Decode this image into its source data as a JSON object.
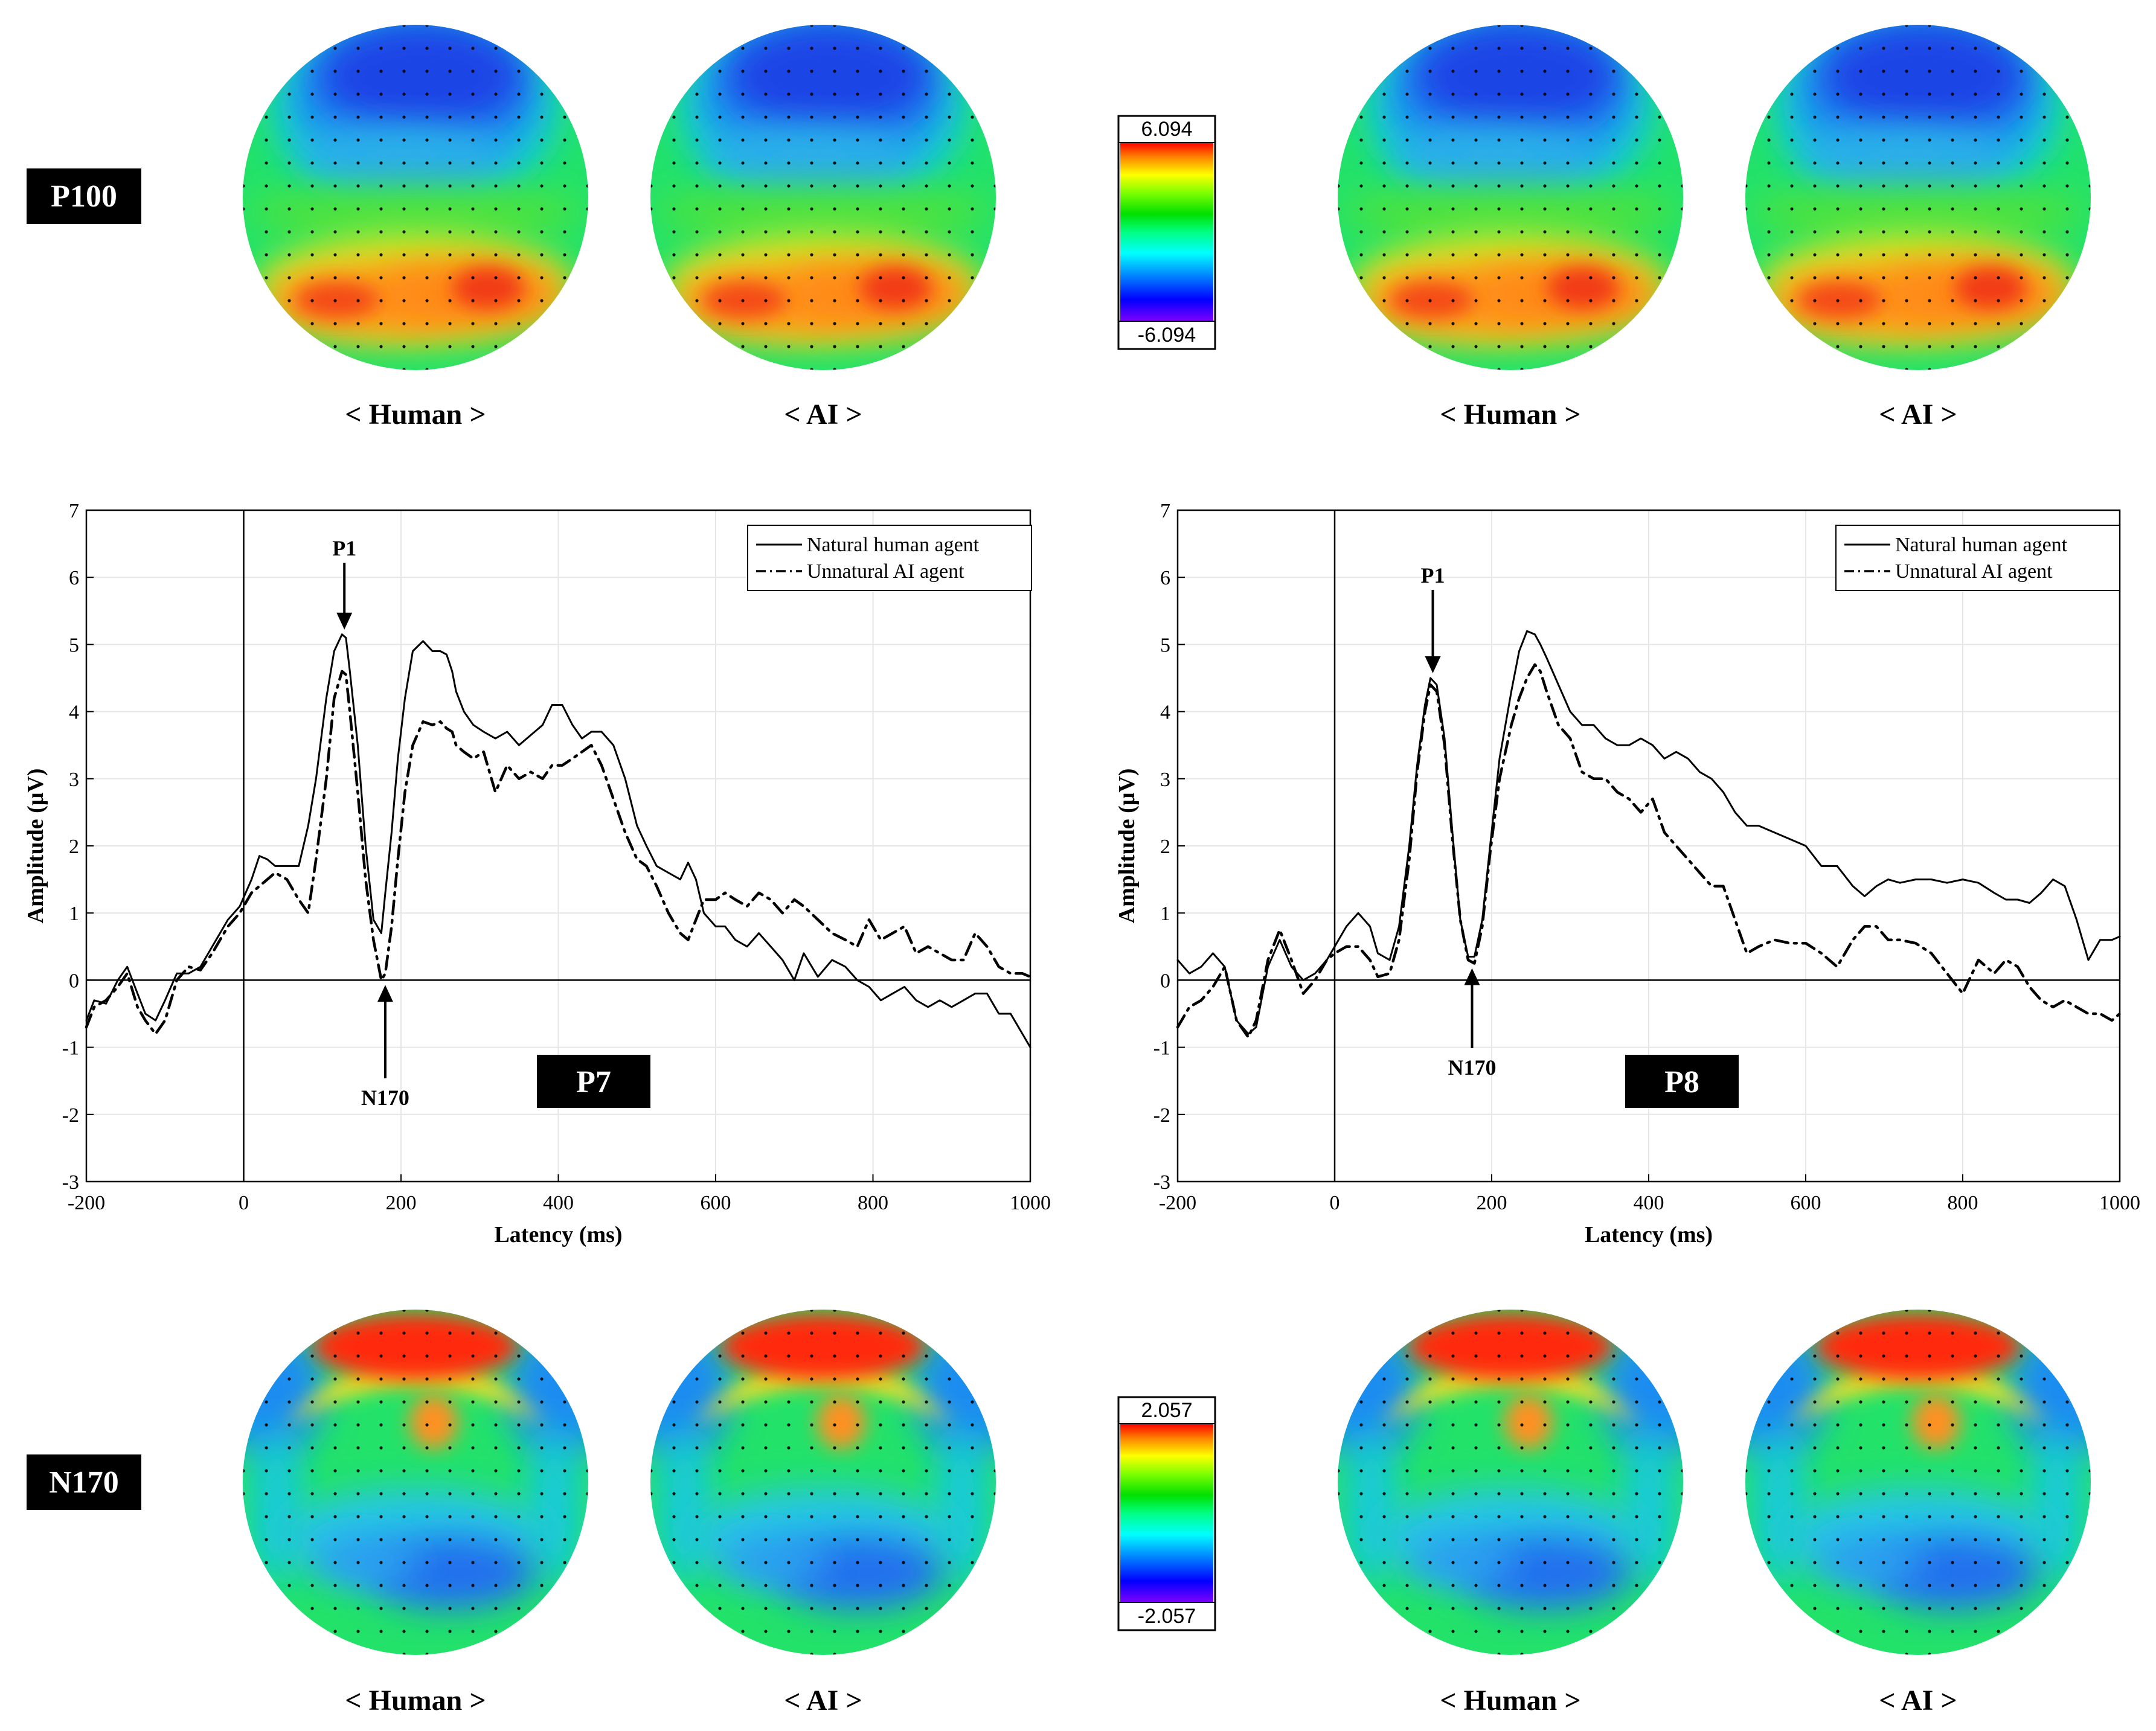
{
  "tags": {
    "top": "P100",
    "bottom": "N170"
  },
  "captions": {
    "human": "< Human >",
    "ai": "< AI >"
  },
  "colorbars": {
    "top": {
      "max": "6.094",
      "min": "-6.094"
    },
    "bottom": {
      "max": "2.057",
      "min": "-2.057"
    }
  },
  "colors": {
    "jet": [
      "#7f00ff",
      "#0000ff",
      "#0080ff",
      "#00ffff",
      "#00ff80",
      "#00ff00",
      "#80ff00",
      "#ffff00",
      "#ff8000",
      "#ff0000"
    ]
  },
  "chart_data": [
    {
      "type": "line",
      "title": "",
      "channel": "P7",
      "xlabel": "Latency (ms)",
      "ylabel": "Amplitude (μV)",
      "xlim": [
        -200,
        1000
      ],
      "ylim": [
        -3,
        7
      ],
      "xticks": [
        "-200",
        "0",
        "200",
        "400",
        "600",
        "800",
        "1000"
      ],
      "yticks": [
        "-3",
        "-2",
        "-1",
        "0",
        "1",
        "2",
        "3",
        "4",
        "5",
        "6",
        "7"
      ],
      "grid": true,
      "legend_position": "top-right",
      "annotations": {
        "peak": "P1",
        "trough": "N170"
      },
      "series": [
        {
          "name": "Natural human agent",
          "style": "solid",
          "x": [
            -200,
            -190,
            -175,
            -160,
            -148,
            -135,
            -125,
            -112,
            -100,
            -85,
            -70,
            -55,
            -40,
            -20,
            -5,
            10,
            20,
            30,
            40,
            55,
            70,
            82,
            92,
            105,
            115,
            125,
            130,
            135,
            145,
            155,
            165,
            175,
            180,
            188,
            196,
            205,
            215,
            228,
            240,
            250,
            258,
            265,
            270,
            280,
            292,
            305,
            320,
            335,
            350,
            365,
            380,
            392,
            405,
            418,
            430,
            442,
            455,
            470,
            485,
            500,
            512,
            525,
            540,
            555,
            565,
            575,
            585,
            600,
            612,
            625,
            640,
            655,
            670,
            685,
            700,
            712,
            730,
            748,
            765,
            780,
            795,
            810,
            825,
            840,
            855,
            870,
            885,
            900,
            915,
            930,
            945,
            960,
            975,
            990,
            1000
          ],
          "values": [
            -0.6,
            -0.3,
            -0.35,
            0.0,
            0.2,
            -0.2,
            -0.5,
            -0.6,
            -0.3,
            0.1,
            0.1,
            0.2,
            0.5,
            0.9,
            1.1,
            1.5,
            1.85,
            1.8,
            1.7,
            1.7,
            1.7,
            2.3,
            3.0,
            4.2,
            4.9,
            5.15,
            5.1,
            4.6,
            3.5,
            2.0,
            0.9,
            0.7,
            1.3,
            2.2,
            3.3,
            4.2,
            4.9,
            5.05,
            4.9,
            4.9,
            4.85,
            4.6,
            4.3,
            4.0,
            3.8,
            3.7,
            3.6,
            3.7,
            3.5,
            3.65,
            3.8,
            4.1,
            4.1,
            3.8,
            3.6,
            3.7,
            3.7,
            3.5,
            3.0,
            2.3,
            2.0,
            1.7,
            1.6,
            1.5,
            1.75,
            1.5,
            1.0,
            0.8,
            0.8,
            0.6,
            0.5,
            0.7,
            0.5,
            0.3,
            0.0,
            0.4,
            0.05,
            0.3,
            0.2,
            0.0,
            -0.1,
            -0.3,
            -0.2,
            -0.1,
            -0.3,
            -0.4,
            -0.3,
            -0.4,
            -0.3,
            -0.2,
            -0.2,
            -0.5,
            -0.5,
            -0.8,
            -1.0
          ]
        },
        {
          "name": "Unnatural AI agent",
          "style": "dashdot",
          "x": [
            -200,
            -190,
            -175,
            -160,
            -148,
            -135,
            -125,
            -112,
            -100,
            -85,
            -70,
            -55,
            -40,
            -20,
            -5,
            10,
            20,
            30,
            40,
            55,
            70,
            82,
            92,
            105,
            115,
            125,
            130,
            135,
            145,
            155,
            165,
            175,
            180,
            188,
            196,
            205,
            215,
            228,
            240,
            250,
            258,
            265,
            270,
            280,
            292,
            305,
            320,
            335,
            350,
            365,
            380,
            392,
            405,
            418,
            430,
            442,
            455,
            470,
            485,
            500,
            512,
            525,
            540,
            555,
            565,
            575,
            585,
            600,
            612,
            625,
            640,
            655,
            670,
            685,
            700,
            712,
            730,
            748,
            765,
            780,
            795,
            810,
            825,
            840,
            855,
            870,
            885,
            900,
            915,
            930,
            945,
            960,
            975,
            990,
            1000
          ],
          "values": [
            -0.7,
            -0.4,
            -0.3,
            -0.1,
            0.1,
            -0.4,
            -0.6,
            -0.8,
            -0.6,
            0.0,
            0.2,
            0.15,
            0.4,
            0.8,
            1.0,
            1.3,
            1.4,
            1.5,
            1.6,
            1.5,
            1.2,
            1.0,
            1.8,
            3.0,
            4.2,
            4.6,
            4.55,
            4.0,
            2.8,
            1.5,
            0.6,
            0.0,
            0.1,
            0.8,
            1.8,
            2.8,
            3.5,
            3.85,
            3.8,
            3.85,
            3.75,
            3.7,
            3.5,
            3.4,
            3.3,
            3.4,
            2.8,
            3.2,
            3.0,
            3.1,
            3.0,
            3.2,
            3.2,
            3.3,
            3.4,
            3.5,
            3.2,
            2.7,
            2.2,
            1.8,
            1.7,
            1.4,
            1.0,
            0.7,
            0.6,
            0.9,
            1.2,
            1.2,
            1.3,
            1.2,
            1.1,
            1.3,
            1.2,
            1.0,
            1.2,
            1.1,
            0.9,
            0.7,
            0.6,
            0.5,
            0.9,
            0.6,
            0.7,
            0.8,
            0.4,
            0.5,
            0.4,
            0.3,
            0.3,
            0.7,
            0.5,
            0.2,
            0.1,
            0.1,
            0.05
          ]
        }
      ]
    },
    {
      "type": "line",
      "title": "",
      "channel": "P8",
      "xlabel": "Latency (ms)",
      "ylabel": "Amplitude (μV)",
      "xlim": [
        -200,
        1000
      ],
      "ylim": [
        -3,
        7
      ],
      "xticks": [
        "-200",
        "0",
        "200",
        "400",
        "600",
        "800",
        "1000"
      ],
      "yticks": [
        "-3",
        "-2",
        "-1",
        "0",
        "1",
        "2",
        "3",
        "4",
        "5",
        "6",
        "7"
      ],
      "grid": true,
      "legend_position": "top-right",
      "annotations": {
        "peak": "P1",
        "trough": "N170"
      },
      "series": [
        {
          "name": "Natural human agent",
          "style": "solid",
          "x": [
            -200,
            -185,
            -170,
            -155,
            -140,
            -125,
            -110,
            -100,
            -85,
            -70,
            -55,
            -40,
            -25,
            -10,
            0,
            15,
            30,
            45,
            55,
            70,
            82,
            95,
            105,
            115,
            122,
            130,
            140,
            150,
            160,
            170,
            178,
            188,
            198,
            210,
            225,
            235,
            245,
            255,
            262,
            270,
            285,
            300,
            315,
            330,
            345,
            360,
            375,
            390,
            405,
            420,
            435,
            450,
            465,
            480,
            495,
            510,
            525,
            540,
            560,
            580,
            600,
            620,
            640,
            660,
            675,
            690,
            705,
            720,
            740,
            760,
            780,
            800,
            820,
            840,
            855,
            870,
            885,
            900,
            915,
            930,
            945,
            960,
            975,
            990,
            1000
          ],
          "values": [
            0.3,
            0.1,
            0.2,
            0.4,
            0.2,
            -0.6,
            -0.8,
            -0.7,
            0.2,
            0.6,
            0.2,
            0.0,
            0.1,
            0.3,
            0.5,
            0.8,
            1.0,
            0.8,
            0.4,
            0.3,
            0.8,
            2.0,
            3.2,
            4.1,
            4.5,
            4.4,
            3.6,
            2.2,
            0.9,
            0.35,
            0.35,
            0.9,
            2.0,
            3.3,
            4.3,
            4.9,
            5.2,
            5.15,
            5.0,
            4.8,
            4.4,
            4.0,
            3.8,
            3.8,
            3.6,
            3.5,
            3.5,
            3.6,
            3.5,
            3.3,
            3.4,
            3.3,
            3.1,
            3.0,
            2.8,
            2.5,
            2.3,
            2.3,
            2.2,
            2.1,
            2.0,
            1.7,
            1.7,
            1.4,
            1.25,
            1.4,
            1.5,
            1.45,
            1.5,
            1.5,
            1.45,
            1.5,
            1.45,
            1.3,
            1.2,
            1.2,
            1.15,
            1.3,
            1.5,
            1.4,
            0.9,
            0.3,
            0.6,
            0.6,
            0.65
          ]
        },
        {
          "name": "Unnatural AI agent",
          "style": "dashdot",
          "x": [
            -200,
            -185,
            -170,
            -155,
            -140,
            -125,
            -110,
            -100,
            -85,
            -70,
            -55,
            -40,
            -25,
            -10,
            0,
            15,
            30,
            45,
            55,
            70,
            82,
            95,
            105,
            115,
            122,
            130,
            140,
            150,
            160,
            170,
            178,
            188,
            198,
            210,
            225,
            235,
            245,
            255,
            262,
            270,
            285,
            300,
            315,
            330,
            345,
            360,
            375,
            390,
            405,
            420,
            435,
            450,
            465,
            480,
            495,
            510,
            525,
            540,
            560,
            580,
            600,
            620,
            640,
            660,
            675,
            690,
            705,
            720,
            740,
            760,
            780,
            800,
            820,
            840,
            855,
            870,
            885,
            900,
            915,
            930,
            945,
            960,
            975,
            990,
            1000
          ],
          "values": [
            -0.7,
            -0.4,
            -0.3,
            -0.1,
            0.2,
            -0.6,
            -0.85,
            -0.6,
            0.3,
            0.75,
            0.3,
            -0.2,
            0.0,
            0.3,
            0.4,
            0.5,
            0.5,
            0.3,
            0.05,
            0.1,
            0.6,
            1.8,
            3.1,
            4.0,
            4.4,
            4.3,
            3.5,
            2.1,
            0.9,
            0.3,
            0.25,
            0.8,
            1.9,
            3.0,
            3.8,
            4.2,
            4.5,
            4.7,
            4.6,
            4.3,
            3.8,
            3.6,
            3.1,
            3.0,
            3.0,
            2.8,
            2.7,
            2.5,
            2.7,
            2.2,
            2.0,
            1.8,
            1.6,
            1.4,
            1.4,
            0.9,
            0.4,
            0.5,
            0.6,
            0.55,
            0.55,
            0.4,
            0.2,
            0.6,
            0.8,
            0.8,
            0.6,
            0.6,
            0.55,
            0.4,
            0.1,
            -0.2,
            0.3,
            0.1,
            0.3,
            0.2,
            -0.1,
            -0.3,
            -0.4,
            -0.3,
            -0.4,
            -0.5,
            -0.5,
            -0.6,
            -0.5
          ]
        }
      ]
    }
  ]
}
